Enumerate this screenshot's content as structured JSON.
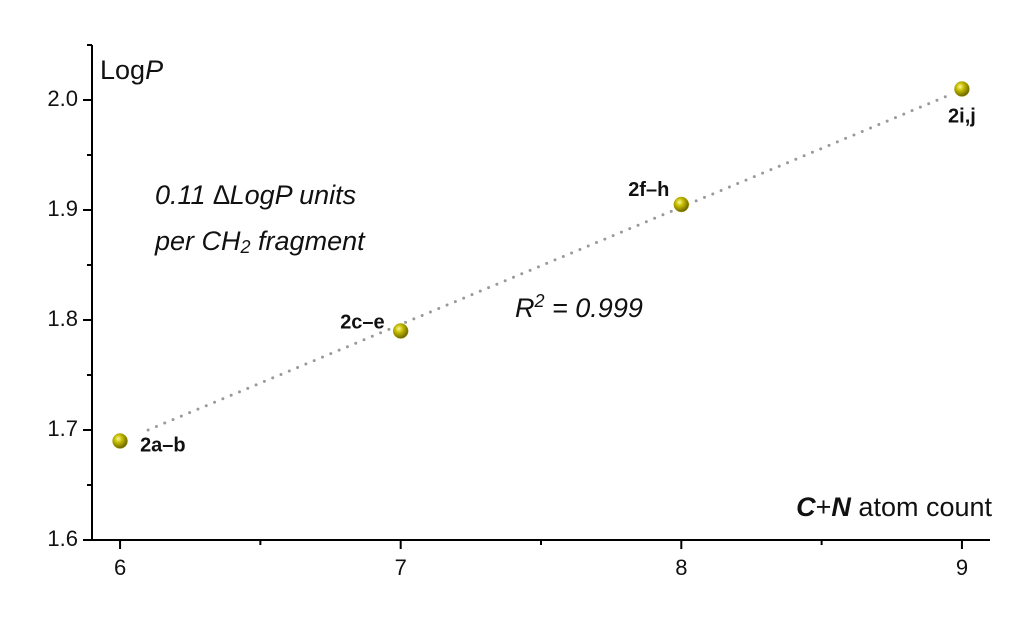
{
  "chart_data": {
    "type": "scatter",
    "ylabel": [
      {
        "text": "Log"
      },
      {
        "text": "P",
        "italic": true
      }
    ],
    "xlabel": [
      {
        "text": "C",
        "bold": true,
        "italic": true
      },
      {
        "text": "+"
      },
      {
        "text": "N",
        "bold": true,
        "italic": true
      },
      {
        "text": " atom count"
      }
    ],
    "annotations": [
      [
        {
          "text": "0.11 ",
          "italic": true
        },
        {
          "text": "∆LogP units",
          "italic": true
        }
      ],
      [
        {
          "text": "per CH",
          "italic": true
        },
        {
          "text": "2",
          "italic": true,
          "sub": true
        },
        {
          "text": " fragment",
          "italic": true
        }
      ],
      [
        {
          "text": "R",
          "italic": true
        },
        {
          "text": "2",
          "italic": true,
          "sup": true
        },
        {
          "text": " = 0.999",
          "italic": true
        }
      ]
    ],
    "x": [
      6,
      7,
      8,
      9
    ],
    "values": [
      1.69,
      1.79,
      1.905,
      2.01
    ],
    "point_labels": [
      "2a–b",
      "2c–e",
      "2f–h",
      "2i,j"
    ],
    "color": "#a8a000",
    "trendline": {
      "x": [
        6.1,
        8.96
      ],
      "y": [
        1.7,
        2.005
      ],
      "style": "dotted",
      "color": "#999999"
    },
    "xlim": [
      5.9,
      9.1
    ],
    "ylim": [
      1.6,
      2.05
    ],
    "xticks": [
      6,
      7,
      8,
      9
    ],
    "yticks": [
      1.6,
      1.7,
      1.8,
      1.9,
      {
        "value": 2.0,
        "label": "2.0"
      }
    ],
    "xminorticks": [
      6.5,
      7.5,
      8.5
    ],
    "yminorticks": [
      1.65,
      1.75,
      1.85,
      1.95,
      2.05
    ],
    "grid": false
  }
}
